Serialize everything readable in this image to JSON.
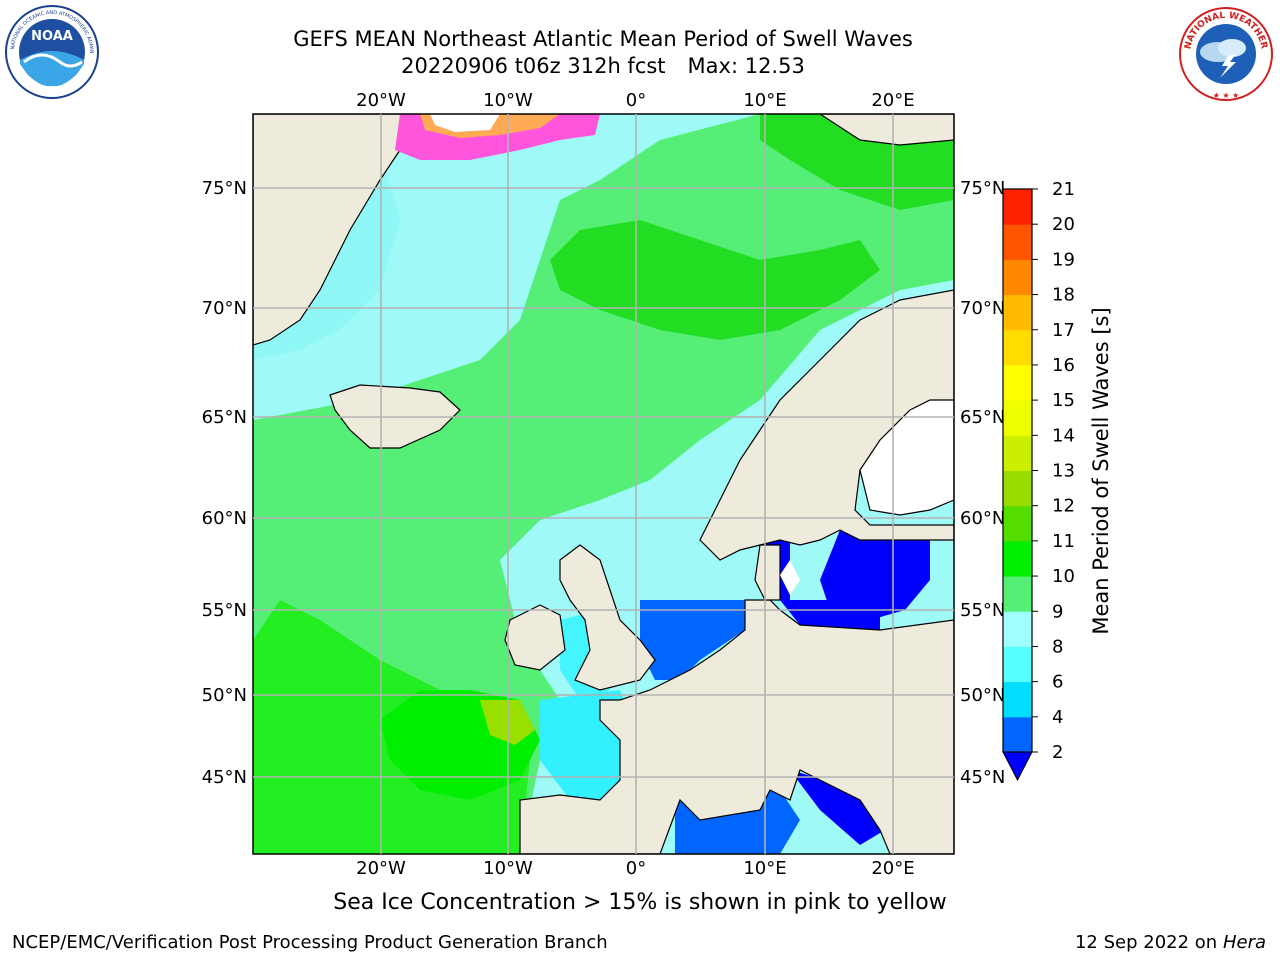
{
  "header": {
    "title_line1": "GEFS MEAN Northeast Atlantic Mean Period of Swell Waves",
    "title_line2_run": "20220906 t06z 312h fcst",
    "title_line2_max": "Max: 12.53"
  },
  "logos": {
    "noaa": {
      "center_text": "NOAA",
      "ring_text": "NATIONAL OCEANIC AND ATMOSPHERIC ADMINISTRATION • U.S. DEPARTMENT OF COMMERCE"
    },
    "nws": {
      "ring_text": "NATIONAL WEATHER SERVICE"
    }
  },
  "map": {
    "lon_labels": [
      "20°W",
      "10°W",
      "0°",
      "10°E",
      "20°E"
    ],
    "lat_labels": [
      "75°N",
      "70°N",
      "65°N",
      "60°N",
      "55°N",
      "50°N",
      "45°N"
    ],
    "colors": {
      "land": "#efebdc",
      "grid": "#b3b3b3",
      "ocean_base": "#9ff9f7"
    }
  },
  "colorbar": {
    "label": "Mean Period of Swell Waves [s]",
    "ticks": [
      "2",
      "4",
      "6",
      "8",
      "9",
      "10",
      "11",
      "12",
      "13",
      "14",
      "15",
      "16",
      "17",
      "18",
      "19",
      "20",
      "21"
    ],
    "colors": [
      "#0066ff",
      "#00ddff",
      "#55ffff",
      "#a0ffff",
      "#55ee77",
      "#00ee00",
      "#55dd00",
      "#99dd00",
      "#ccee00",
      "#eeff00",
      "#ffff00",
      "#ffdd00",
      "#ffbb00",
      "#ff8800",
      "#ff5500",
      "#ff2200",
      "#ee0000"
    ],
    "extend_color": "#0000ff"
  },
  "footer": {
    "note": "Sea Ice Concentration > 15% is shown in pink to yellow",
    "left": "NCEP/EMC/Verification Post Processing Product Generation Branch",
    "right_date": "12 Sep 2022 on",
    "right_host": "Hera"
  }
}
